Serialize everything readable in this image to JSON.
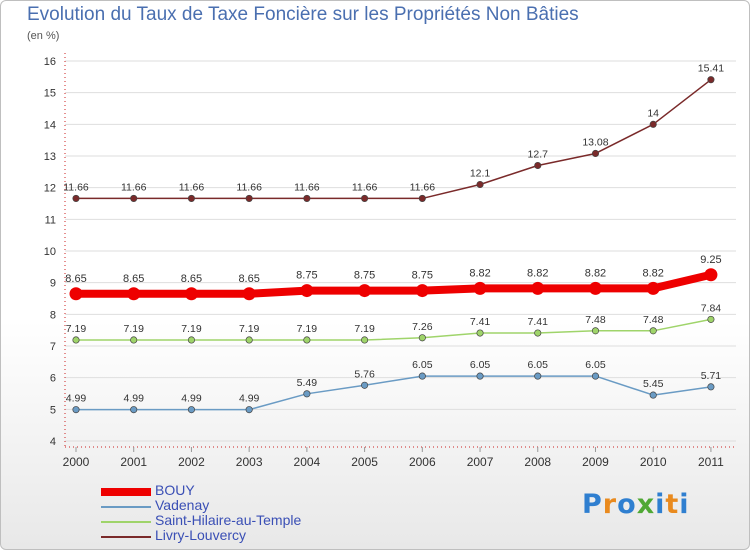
{
  "chart_data": {
    "type": "line",
    "title": "Evolution du Taux de Taxe Foncière sur les Propriétés Non Bâties",
    "ylabel": "(en %)",
    "xlabel": "",
    "ylim": [
      4,
      16
    ],
    "yticks": [
      "4",
      "5",
      "6",
      "7",
      "8",
      "9",
      "10",
      "11",
      "12",
      "13",
      "14",
      "15",
      "16"
    ],
    "categories": [
      "2000",
      "2001",
      "2002",
      "2003",
      "2004",
      "2005",
      "2006",
      "2007",
      "2008",
      "2009",
      "2010",
      "2011"
    ],
    "series": [
      {
        "name": "BOUY",
        "color": "#ee0000",
        "values": [
          8.65,
          8.65,
          8.65,
          8.65,
          8.75,
          8.75,
          8.75,
          8.82,
          8.82,
          8.82,
          8.82,
          9.25
        ],
        "labels": [
          "8.65",
          "8.65",
          "8.65",
          "8.65",
          "8.75",
          "8.75",
          "8.75",
          "8.82",
          "8.82",
          "8.82",
          "8.82",
          "9.25"
        ]
      },
      {
        "name": "Vadenay",
        "color": "#6a9bc4",
        "values": [
          4.99,
          4.99,
          4.99,
          4.99,
          5.49,
          5.76,
          6.05,
          6.05,
          6.05,
          6.05,
          5.45,
          5.71
        ],
        "labels": [
          "4.99",
          "4.99",
          "4.99",
          "4.99",
          "5.49",
          "5.76",
          "6.05",
          "6.05",
          "6.05",
          "6.05",
          "5.45",
          "5.71"
        ]
      },
      {
        "name": "Saint-Hilaire-au-Temple",
        "color": "#9fd46a",
        "values": [
          7.19,
          7.19,
          7.19,
          7.19,
          7.19,
          7.19,
          7.26,
          7.41,
          7.41,
          7.48,
          7.48,
          7.84
        ],
        "labels": [
          "7.19",
          "7.19",
          "7.19",
          "7.19",
          "7.19",
          "7.19",
          "7.26",
          "7.41",
          "7.41",
          "7.48",
          "7.48",
          "7.84"
        ]
      },
      {
        "name": "Livry-Louvercy",
        "color": "#7a2a2a",
        "values": [
          11.66,
          11.66,
          11.66,
          11.66,
          11.66,
          11.66,
          11.66,
          12.1,
          12.7,
          13.08,
          14,
          15.41
        ],
        "labels": [
          "11.66",
          "11.66",
          "11.66",
          "11.66",
          "11.66",
          "11.66",
          "11.66",
          "12.1",
          "12.7",
          "13.08",
          "14",
          "15.41"
        ]
      }
    ],
    "legend_position": "bottom-left"
  },
  "logo": {
    "text": "Proxiti",
    "letters": [
      "P",
      "r",
      "o",
      "x",
      "i",
      "t",
      "i"
    ],
    "letter_colors": [
      "#2f7fd0",
      "#e98a1e",
      "#2f7fd0",
      "#4fa834",
      "#2f7fd0",
      "#e98a1e",
      "#2f7fd0"
    ]
  }
}
